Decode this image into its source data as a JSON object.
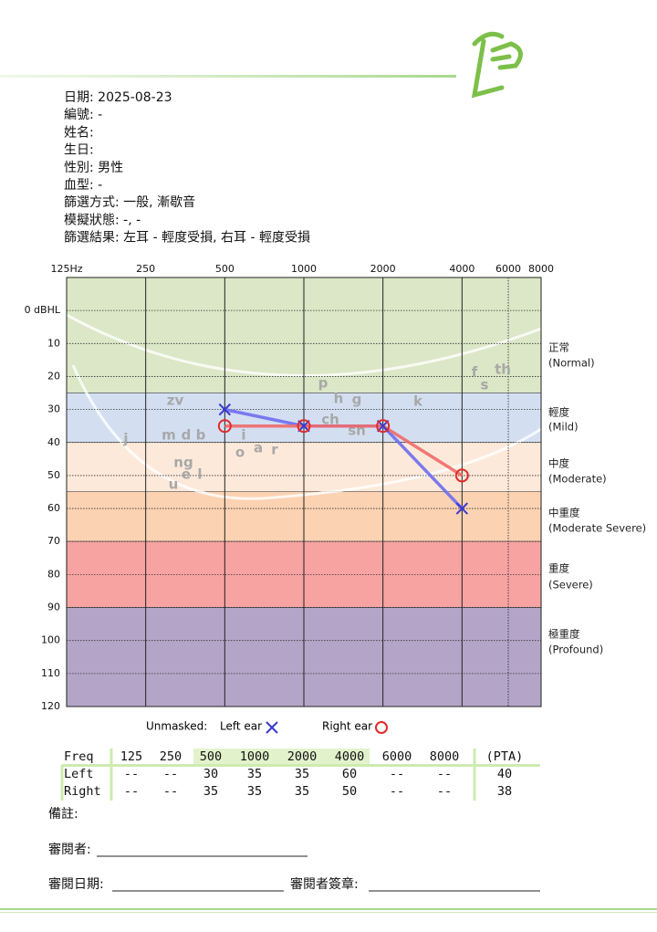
{
  "header": {
    "lines": [
      "日期: 2025-08-23",
      "編號: -",
      "姓名:",
      "生日:",
      "性別: 男性",
      "血型: -",
      "篩選方式: 一般, 漸歇音",
      "模擬狀態: -, -",
      "篩選結果: 左耳 - 輕度受損, 右耳 - 輕度受損"
    ]
  },
  "chart_data": {
    "type": "line",
    "xscale": "log",
    "xlim": [
      125,
      8000
    ],
    "xticks": [
      {
        "value": 125,
        "label": "125Hz"
      },
      250,
      500,
      1000,
      2000,
      4000,
      6000,
      8000
    ],
    "ylim": [
      -10,
      120
    ],
    "yinverted": true,
    "yticks": [
      {
        "value": 0,
        "label": "0 dBHL"
      },
      10,
      20,
      30,
      40,
      50,
      60,
      70,
      80,
      90,
      100,
      110,
      120
    ],
    "grid": true,
    "bands": [
      {
        "label": "正常",
        "sublabel": "(Normal)",
        "range": [
          -10,
          25
        ],
        "color": "#dbe7c6"
      },
      {
        "label": "輕度",
        "sublabel": "(Mild)",
        "range": [
          25,
          40
        ],
        "color": "#d3dff1"
      },
      {
        "label": "中度",
        "sublabel": "(Moderate)",
        "range": [
          40,
          55
        ],
        "color": "#fde9d9"
      },
      {
        "label": "中重度",
        "sublabel": "(Moderate Severe)",
        "range": [
          55,
          70
        ],
        "color": "#fbd2b2"
      },
      {
        "label": "重度",
        "sublabel": "(Severe)",
        "range": [
          70,
          90
        ],
        "color": "#f6a3a2"
      },
      {
        "label": "極重度",
        "sublabel": "(Profound)",
        "range": [
          90,
          120
        ],
        "color": "#b4a5c8"
      }
    ],
    "speech_sounds": [
      "p",
      "h",
      "g",
      "k",
      "f",
      "th",
      "s",
      "zv",
      "ch",
      "sh",
      "j",
      "m",
      "d",
      "b",
      "i",
      "a",
      "o",
      "r",
      "ng",
      "e",
      "l",
      "u"
    ],
    "legend_title": "Unmasked:",
    "series": [
      {
        "name": "Left ear",
        "marker": "x",
        "color": "#3a3ad0",
        "line_color": "#6e6ef0",
        "x": [
          500,
          1000,
          2000,
          4000
        ],
        "values": [
          30,
          35,
          35,
          60
        ]
      },
      {
        "name": "Right ear",
        "marker": "o",
        "color": "#e02a2a",
        "line_color": "#f06a6a",
        "x": [
          500,
          1000,
          2000,
          4000
        ],
        "values": [
          35,
          35,
          35,
          50
        ]
      }
    ]
  },
  "table": {
    "header": [
      "Freq",
      "125",
      "250",
      "500",
      "1000",
      "2000",
      "4000",
      "6000",
      "8000",
      "(PTA)"
    ],
    "rows": [
      [
        "Left",
        "--",
        "--",
        "30",
        "35",
        "35",
        "60",
        "--",
        "--",
        "40"
      ],
      [
        "Right",
        "--",
        "--",
        "35",
        "35",
        "35",
        "50",
        "--",
        "--",
        "38"
      ]
    ]
  },
  "footer": {
    "notes": "備註:",
    "reviewer": "審閱者:",
    "review_date": "審閱日期:",
    "signature": "審閱者簽章:"
  }
}
